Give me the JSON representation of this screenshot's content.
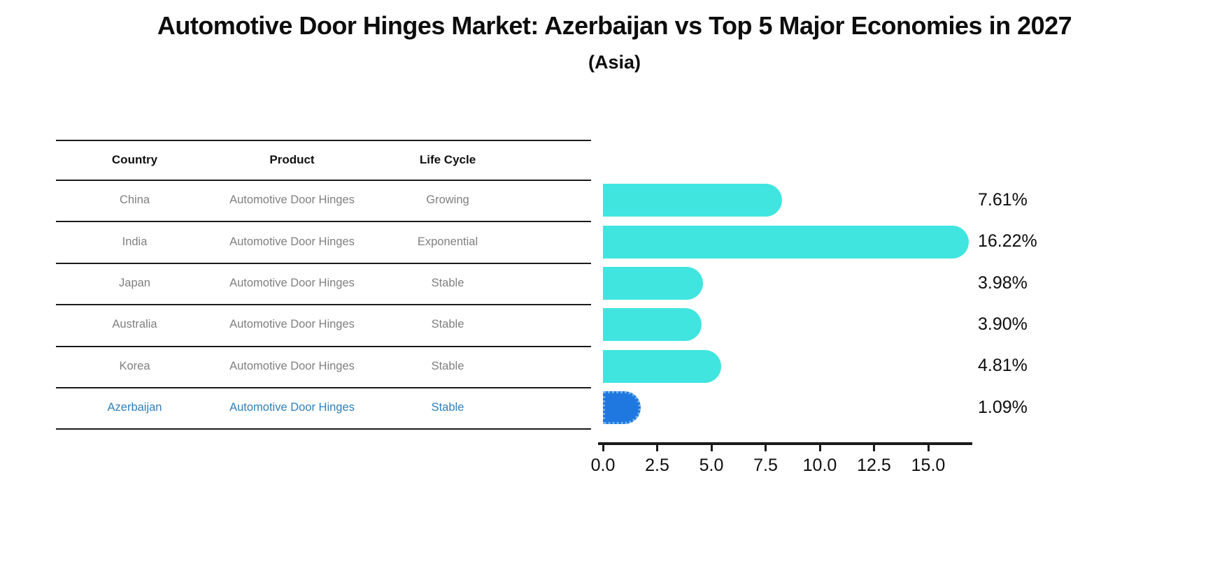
{
  "title": "Automotive Door Hinges Market: Azerbaijan vs Top 5 Major Economies in 2027",
  "subtitle": "(Asia)",
  "table": {
    "headers": [
      "Country",
      "Product",
      "Life Cycle"
    ],
    "rows": [
      {
        "country": "China",
        "product": "Automotive Door Hinges",
        "life_cycle": "Growing",
        "highlight": false
      },
      {
        "country": "India",
        "product": "Automotive Door Hinges",
        "life_cycle": "Exponential",
        "highlight": false
      },
      {
        "country": "Japan",
        "product": "Automotive Door Hinges",
        "life_cycle": "Stable",
        "highlight": false
      },
      {
        "country": "Australia",
        "product": "Automotive Door Hinges",
        "life_cycle": "Stable",
        "highlight": false
      },
      {
        "country": "Korea",
        "product": "Automotive Door Hinges",
        "life_cycle": "Stable",
        "highlight": false
      },
      {
        "country": "Azerbaijan",
        "product": "Automotive Door Hinges",
        "life_cycle": "Stable",
        "highlight": true
      }
    ]
  },
  "chart_data": {
    "type": "bar",
    "orientation": "horizontal",
    "title": "Automotive Door Hinges Market: Azerbaijan vs Top 5 Major Economies in 2027",
    "subtitle": "(Asia)",
    "categories": [
      "China",
      "India",
      "Japan",
      "Australia",
      "Korea",
      "Azerbaijan"
    ],
    "values": [
      7.61,
      16.22,
      3.98,
      3.9,
      4.81,
      1.09
    ],
    "value_labels": [
      "7.61%",
      "16.22%",
      "3.98%",
      "3.90%",
      "4.81%",
      "1.09%"
    ],
    "x_ticks": [
      "0.0",
      "2.5",
      "5.0",
      "7.5",
      "10.0",
      "12.5",
      "15.0"
    ],
    "x_tick_values": [
      0,
      2.5,
      5,
      7.5,
      10,
      12.5,
      15
    ],
    "xlim": [
      0,
      17.0
    ],
    "grid": false,
    "legend": "none",
    "highlight_index": 5,
    "bar_color": "#40E5E0",
    "highlight_bar_color": "#1E78E0",
    "highlight_text_color": "#2E7FBA",
    "axis_color": "#1A1A1A",
    "table_text_color": "#7F7F7F"
  }
}
